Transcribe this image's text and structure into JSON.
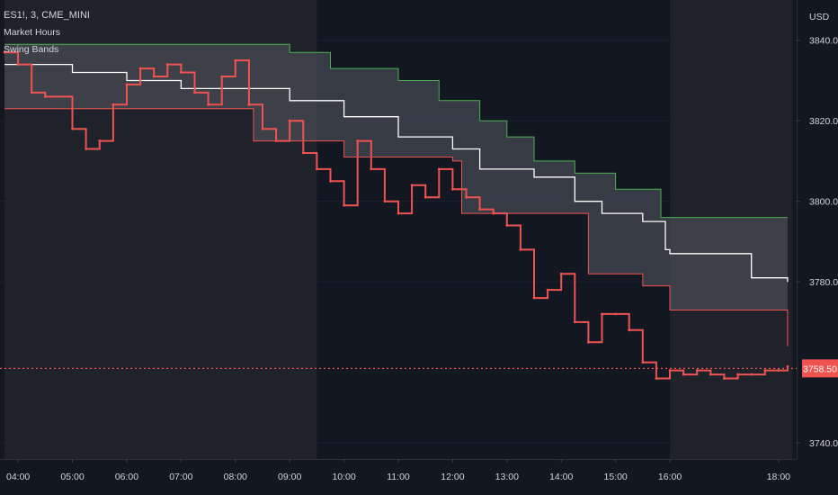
{
  "legend": {
    "symbol": "ES1!, 3, CME_MINI",
    "indicator_1": "Market Hours",
    "indicator_2": "Swing Bands"
  },
  "price_axis": {
    "currency": "USD",
    "ticks": [
      "3840.00",
      "3820.00",
      "3800.00",
      "3780.00",
      "3740.00"
    ],
    "last_price": "3758.50"
  },
  "time_axis": {
    "ticks": [
      "04:00",
      "05:00",
      "06:00",
      "07:00",
      "08:00",
      "09:00",
      "10:00",
      "11:00",
      "12:00",
      "13:00",
      "14:00",
      "15:00",
      "16:00",
      "18:00"
    ]
  },
  "colors": {
    "background": "#131722",
    "session_shade": "#1f222b",
    "band_fill": "#565963",
    "upper_band": "#4caf50",
    "mid_band": "#ffffff",
    "lower_band": "#ef5350",
    "price_down": "#ef5350",
    "price_highlight": "#ffeb3b",
    "axis_text": "#d1d4dc"
  },
  "chart_data": {
    "type": "line",
    "title": "ES1!, 3, CME_MINI",
    "ylabel": "USD",
    "ylim": [
      3736,
      3850
    ],
    "last_price": 3758.5,
    "shaded_sessions": [
      [
        "03:45",
        "09:30"
      ],
      [
        "16:00",
        "18:15"
      ]
    ],
    "bands": {
      "upper": {
        "x": [
          "03:45",
          "07:55",
          "09:00",
          "09:45",
          "11:00",
          "11:45",
          "12:30",
          "13:00",
          "13:30",
          "14:15",
          "15:00",
          "15:50",
          "18:10"
        ],
        "y": [
          3839,
          3839,
          3837,
          3833,
          3830,
          3825,
          3820,
          3816,
          3810,
          3807,
          3803,
          3796,
          3796
        ]
      },
      "mid": {
        "x": [
          "03:45",
          "05:00",
          "06:00",
          "07:00",
          "08:00",
          "09:00",
          "10:00",
          "11:00",
          "12:00",
          "12:30",
          "13:30",
          "14:15",
          "14:45",
          "15:30",
          "15:55",
          "16:00",
          "17:30",
          "18:10"
        ],
        "y": [
          3834,
          3832,
          3830,
          3828,
          3828,
          3825,
          3821,
          3816,
          3813,
          3808,
          3806,
          3800,
          3797,
          3795,
          3788,
          3787,
          3781,
          3780
        ]
      },
      "lower": {
        "x": [
          "03:45",
          "07:55",
          "08:20",
          "10:00",
          "12:00",
          "12:10",
          "13:30",
          "14:30",
          "15:30",
          "16:00",
          "17:30",
          "18:10"
        ],
        "y": [
          3823,
          3823,
          3815,
          3811,
          3810,
          3797,
          3797,
          3782,
          3779,
          3773,
          3773,
          3764
        ]
      }
    },
    "price": {
      "x": [
        "03:45",
        "04:00",
        "04:15",
        "04:30",
        "05:00",
        "05:15",
        "05:30",
        "05:45",
        "06:00",
        "06:15",
        "06:30",
        "06:45",
        "07:00",
        "07:15",
        "07:30",
        "07:45",
        "08:00",
        "08:15",
        "08:30",
        "08:45",
        "09:00",
        "09:15",
        "09:30",
        "09:45",
        "10:00",
        "10:15",
        "10:30",
        "10:45",
        "11:00",
        "11:15",
        "11:30",
        "11:45",
        "12:00",
        "12:15",
        "12:30",
        "12:45",
        "13:00",
        "13:15",
        "13:30",
        "13:45",
        "14:00",
        "14:15",
        "14:30",
        "14:45",
        "15:00",
        "15:15",
        "15:30",
        "15:45",
        "16:00",
        "16:15",
        "16:30",
        "16:45",
        "17:00",
        "17:15",
        "17:30",
        "17:45",
        "18:00",
        "18:10"
      ],
      "y": [
        3837,
        3834,
        3827,
        3826,
        3818,
        3813,
        3815,
        3824,
        3829,
        3833,
        3831,
        3834,
        3832,
        3827,
        3824,
        3831,
        3835,
        3824,
        3818,
        3815,
        3820,
        3812,
        3808,
        3805,
        3799,
        3815,
        3808,
        3800,
        3797,
        3804,
        3801,
        3808,
        3803,
        3801,
        3798,
        3797,
        3794,
        3788,
        3776,
        3778,
        3782,
        3770,
        3765,
        3772,
        3772,
        3768,
        3760,
        3756,
        3758,
        3757,
        3758,
        3757,
        3756,
        3757,
        3757,
        3758,
        3758,
        3759
      ]
    }
  }
}
